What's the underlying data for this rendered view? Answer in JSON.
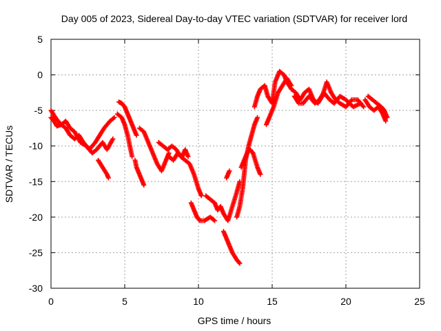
{
  "chart_data": {
    "type": "scatter",
    "title": "Day 005 of 2023, Sidereal Day-to-day VTEC variation (SDTVAR) for receiver lord",
    "xlabel": "GPS time / hours",
    "ylabel": "SDTVAR / TECUs",
    "xlim": [
      0,
      25
    ],
    "ylim": [
      -30,
      5
    ],
    "xticks": [
      0,
      5,
      10,
      15,
      20,
      25
    ],
    "yticks": [
      5,
      0,
      -5,
      -10,
      -15,
      -20,
      -25,
      -30
    ],
    "grid": true,
    "marker": "+",
    "color": "#ff0000",
    "series": [
      {
        "segments": [
          [
            [
              0.0,
              -5.0
            ],
            [
              0.3,
              -6.0
            ],
            [
              0.6,
              -6.8
            ],
            [
              1.0,
              -7.5
            ],
            [
              1.3,
              -8.5
            ],
            [
              1.6,
              -9.0
            ],
            [
              1.9,
              -8.5
            ],
            [
              2.2,
              -9.5
            ],
            [
              2.6,
              -10.5
            ],
            [
              3.0,
              -9.5
            ],
            [
              3.3,
              -8.5
            ],
            [
              3.6,
              -7.5
            ],
            [
              4.0,
              -6.5
            ],
            [
              4.3,
              -6.0
            ]
          ],
          [
            [
              0.0,
              -6.0
            ],
            [
              0.2,
              -6.5
            ],
            [
              0.4,
              -7.2
            ],
            [
              0.7,
              -7.0
            ],
            [
              1.0,
              -6.5
            ],
            [
              1.3,
              -7.5
            ],
            [
              1.6,
              -8.0
            ],
            [
              2.0,
              -9.5
            ],
            [
              2.4,
              -10.0
            ],
            [
              2.8,
              -11.0
            ],
            [
              3.1,
              -10.5
            ],
            [
              3.5,
              -9.5
            ],
            [
              3.8,
              -10.5
            ],
            [
              4.2,
              -9.0
            ]
          ],
          [
            [
              3.2,
              -12.0
            ],
            [
              3.5,
              -13.0
            ],
            [
              3.8,
              -14.0
            ],
            [
              3.9,
              -14.5
            ]
          ],
          [
            [
              4.6,
              -3.8
            ],
            [
              4.8,
              -4.0
            ],
            [
              5.0,
              -4.5
            ],
            [
              5.2,
              -5.5
            ],
            [
              5.4,
              -6.5
            ],
            [
              5.6,
              -7.5
            ],
            [
              5.8,
              -8.5
            ]
          ],
          [
            [
              4.5,
              -5.5
            ],
            [
              4.8,
              -6.0
            ],
            [
              5.0,
              -7.0
            ],
            [
              5.2,
              -8.5
            ],
            [
              5.4,
              -10.5
            ],
            [
              5.5,
              -11.5
            ]
          ],
          [
            [
              5.7,
              -12.0
            ],
            [
              5.8,
              -13.0
            ],
            [
              6.0,
              -14.0
            ],
            [
              6.2,
              -15.0
            ],
            [
              6.3,
              -15.5
            ]
          ],
          [
            [
              6.0,
              -7.5
            ],
            [
              6.3,
              -8.0
            ],
            [
              6.6,
              -9.5
            ],
            [
              6.9,
              -11.0
            ],
            [
              7.2,
              -12.5
            ],
            [
              7.5,
              -13.5
            ],
            [
              7.8,
              -12.0
            ],
            [
              8.0,
              -11.0
            ]
          ],
          [
            [
              7.3,
              -9.5
            ],
            [
              7.6,
              -10.0
            ],
            [
              7.9,
              -10.5
            ],
            [
              8.2,
              -10.0
            ],
            [
              8.5,
              -10.5
            ],
            [
              8.8,
              -11.5
            ],
            [
              9.1,
              -12.0
            ],
            [
              9.4,
              -12.5
            ],
            [
              9.7,
              -14.0
            ],
            [
              10.0,
              -16.0
            ],
            [
              10.2,
              -17.0
            ]
          ],
          [
            [
              8.0,
              -11.5
            ],
            [
              8.3,
              -12.0
            ],
            [
              8.6,
              -11.0
            ],
            [
              8.9,
              -11.5
            ],
            [
              9.1,
              -10.5
            ],
            [
              9.3,
              -11.5
            ]
          ],
          [
            [
              9.5,
              -18.0
            ],
            [
              9.7,
              -19.0
            ],
            [
              9.9,
              -20.0
            ],
            [
              10.1,
              -20.5
            ],
            [
              10.4,
              -20.5
            ],
            [
              10.8,
              -20.0
            ],
            [
              11.1,
              -20.5
            ]
          ],
          [
            [
              10.5,
              -17.0
            ],
            [
              10.8,
              -17.5
            ],
            [
              11.1,
              -18.0
            ],
            [
              11.3,
              -19.0
            ],
            [
              11.5,
              -18.5
            ],
            [
              11.7,
              -19.5
            ],
            [
              12.0,
              -20.5
            ],
            [
              12.3,
              -18.5
            ],
            [
              12.6,
              -16.5
            ],
            [
              12.8,
              -15.0
            ]
          ],
          [
            [
              11.7,
              -22.0
            ],
            [
              11.9,
              -23.0
            ],
            [
              12.1,
              -24.0
            ],
            [
              12.3,
              -25.0
            ],
            [
              12.6,
              -26.0
            ],
            [
              12.8,
              -26.5
            ]
          ],
          [
            [
              11.9,
              -14.5
            ],
            [
              12.1,
              -13.5
            ]
          ],
          [
            [
              12.6,
              -20.0
            ],
            [
              12.8,
              -18.5
            ],
            [
              13.0,
              -16.0
            ],
            [
              13.1,
              -14.0
            ],
            [
              13.2,
              -12.0
            ],
            [
              13.4,
              -10.0
            ],
            [
              13.6,
              -8.5
            ],
            [
              13.8,
              -7.0
            ],
            [
              14.0,
              -6.0
            ]
          ],
          [
            [
              12.9,
              -13.0
            ],
            [
              13.1,
              -12.0
            ],
            [
              13.3,
              -11.0
            ],
            [
              13.5,
              -10.5
            ],
            [
              13.7,
              -11.0
            ],
            [
              14.0,
              -13.0
            ],
            [
              14.2,
              -14.0
            ]
          ],
          [
            [
              13.8,
              -4.5
            ],
            [
              14.0,
              -3.0
            ],
            [
              14.2,
              -2.0
            ],
            [
              14.5,
              -1.5
            ],
            [
              14.7,
              -3.0
            ],
            [
              15.0,
              -4.0
            ],
            [
              15.2,
              -1.0
            ],
            [
              15.5,
              0.5
            ],
            [
              15.8,
              0.0
            ],
            [
              16.0,
              -1.0
            ],
            [
              16.3,
              -2.0
            ]
          ],
          [
            [
              14.6,
              -7.0
            ],
            [
              14.8,
              -6.0
            ],
            [
              15.1,
              -4.5
            ],
            [
              15.4,
              -2.5
            ],
            [
              15.7,
              -1.5
            ],
            [
              16.0,
              -0.5
            ],
            [
              16.3,
              -1.5
            ]
          ],
          [
            [
              16.3,
              -2.0
            ],
            [
              16.6,
              -2.5
            ],
            [
              16.9,
              -3.5
            ],
            [
              17.2,
              -2.5
            ],
            [
              17.5,
              -2.0
            ],
            [
              17.8,
              -3.5
            ],
            [
              18.1,
              -4.0
            ],
            [
              18.4,
              -3.0
            ],
            [
              18.7,
              -1.0
            ],
            [
              19.0,
              -2.5
            ],
            [
              19.3,
              -3.5
            ],
            [
              19.6,
              -4.0
            ],
            [
              20.0,
              -4.5
            ],
            [
              20.4,
              -3.5
            ],
            [
              20.8,
              -3.5
            ],
            [
              21.2,
              -4.5
            ]
          ],
          [
            [
              16.5,
              -3.0
            ],
            [
              16.8,
              -4.0
            ],
            [
              17.1,
              -4.0
            ],
            [
              17.5,
              -3.0
            ],
            [
              17.9,
              -4.0
            ],
            [
              18.2,
              -3.5
            ],
            [
              18.5,
              -2.5
            ],
            [
              18.9,
              -3.5
            ],
            [
              19.2,
              -4.0
            ],
            [
              19.6,
              -3.0
            ],
            [
              20.0,
              -3.5
            ],
            [
              20.5,
              -4.5
            ],
            [
              21.0,
              -4.0
            ]
          ],
          [
            [
              21.3,
              -3.5
            ],
            [
              21.6,
              -4.5
            ],
            [
              21.9,
              -5.0
            ],
            [
              22.2,
              -4.5
            ],
            [
              22.5,
              -5.5
            ],
            [
              22.7,
              -6.5
            ]
          ],
          [
            [
              21.5,
              -3.0
            ],
            [
              21.8,
              -3.5
            ],
            [
              22.1,
              -4.0
            ],
            [
              22.4,
              -4.5
            ],
            [
              22.6,
              -5.0
            ],
            [
              22.8,
              -6.0
            ]
          ]
        ]
      }
    ]
  }
}
